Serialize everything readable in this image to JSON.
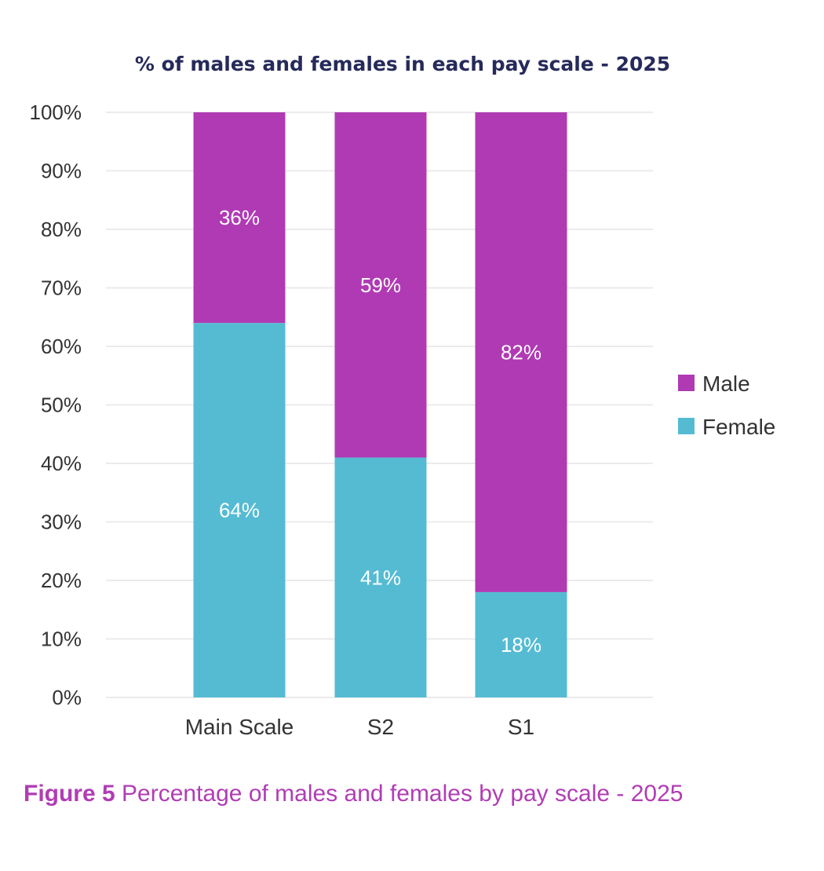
{
  "chart_data": {
    "type": "bar",
    "stacked": true,
    "title": "% of males and females in each pay scale - 2025",
    "categories": [
      "Main Scale",
      "S2",
      "S1"
    ],
    "series": [
      {
        "name": "Female",
        "color": "#55bbd3",
        "values": [
          64,
          41,
          18
        ],
        "labels": [
          "64%",
          "41%",
          "18%"
        ]
      },
      {
        "name": "Male",
        "color": "#b03ab4",
        "values": [
          36,
          59,
          82
        ],
        "labels": [
          "36%",
          "59%",
          "82%"
        ]
      }
    ],
    "ylim": [
      0,
      100
    ],
    "yticks": [
      "0%",
      "10%",
      "20%",
      "30%",
      "40%",
      "50%",
      "60%",
      "70%",
      "80%",
      "90%",
      "100%"
    ],
    "grid": true,
    "legend": {
      "position": "right",
      "items": [
        "Male",
        "Female"
      ]
    }
  },
  "caption": {
    "label": "Figure 5",
    "text": " Percentage of males and females by pay scale - 2025"
  }
}
